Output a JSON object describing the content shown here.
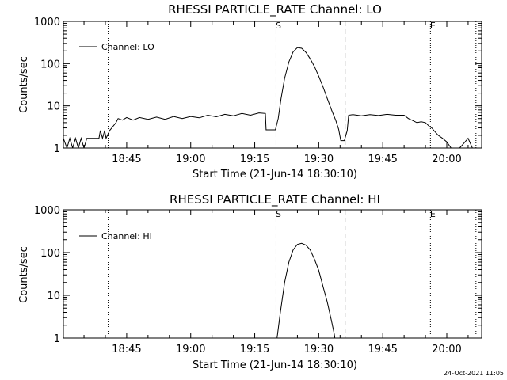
{
  "chart_data": [
    {
      "type": "line",
      "title": "RHESSI PARTICLE_RATE Channel: LO",
      "xlabel": "Start Time (21-Jun-14 18:30:10)",
      "ylabel": "Counts/sec",
      "yscale": "log",
      "ylim": [
        1,
        1000
      ],
      "xlim": [
        "18:30:10",
        "20:08:10"
      ],
      "xticks": [
        "18:45",
        "19:00",
        "19:15",
        "19:30",
        "19:45",
        "20:00"
      ],
      "yticks": [
        "1",
        "10",
        "100",
        "1000"
      ],
      "legend": "top-left",
      "series": [
        {
          "name": "Channel: LO",
          "color": "#000000",
          "points": [
            [
              "18:30:10",
              1.7
            ],
            [
              "18:31:00",
              1.0
            ],
            [
              "18:31:40",
              1.7
            ],
            [
              "18:32:20",
              1.0
            ],
            [
              "18:33:00",
              1.7
            ],
            [
              "18:33:40",
              1.0
            ],
            [
              "18:34:20",
              1.7
            ],
            [
              "18:35:00",
              1.0
            ],
            [
              "18:35:40",
              1.7
            ],
            [
              "18:38:30",
              1.7
            ],
            [
              "18:38:50",
              2.6
            ],
            [
              "18:39:20",
              1.7
            ],
            [
              "18:39:50",
              2.6
            ],
            [
              "18:40:10",
              1.7
            ],
            [
              "18:41:00",
              2.6
            ],
            [
              "18:42:30",
              4.0
            ],
            [
              "18:43:00",
              5.0
            ],
            [
              "18:44:00",
              4.6
            ],
            [
              "18:45:00",
              5.3
            ],
            [
              "18:46:30",
              4.6
            ],
            [
              "18:48:00",
              5.3
            ],
            [
              "18:50:00",
              4.8
            ],
            [
              "18:52:00",
              5.4
            ],
            [
              "18:54:00",
              4.8
            ],
            [
              "18:56:00",
              5.6
            ],
            [
              "18:58:00",
              5.0
            ],
            [
              "19:00:00",
              5.6
            ],
            [
              "19:02:00",
              5.2
            ],
            [
              "19:04:00",
              6.0
            ],
            [
              "19:06:00",
              5.5
            ],
            [
              "19:08:00",
              6.3
            ],
            [
              "19:10:00",
              5.8
            ],
            [
              "19:12:00",
              6.6
            ],
            [
              "19:14:00",
              6.0
            ],
            [
              "19:16:00",
              6.8
            ],
            [
              "19:17:30",
              6.6
            ],
            [
              "19:17:40",
              2.7
            ],
            [
              "19:19:50",
              2.7
            ],
            [
              "19:20:30",
              5.0
            ],
            [
              "19:21:10",
              15
            ],
            [
              "19:22:00",
              45
            ],
            [
              "19:23:00",
              110
            ],
            [
              "19:24:00",
              190
            ],
            [
              "19:25:00",
              240
            ],
            [
              "19:26:00",
              230
            ],
            [
              "19:27:00",
              185
            ],
            [
              "19:28:00",
              130
            ],
            [
              "19:29:00",
              85
            ],
            [
              "19:30:00",
              50
            ],
            [
              "19:31:00",
              28
            ],
            [
              "19:32:00",
              15
            ],
            [
              "19:33:00",
              8
            ],
            [
              "19:34:00",
              4.5
            ],
            [
              "19:34:40",
              2.8
            ],
            [
              "19:35:10",
              1.5
            ],
            [
              "19:36:00",
              1.5
            ],
            [
              "19:36:40",
              2.6
            ],
            [
              "19:37:00",
              6.0
            ],
            [
              "19:38:00",
              6.2
            ],
            [
              "19:40:00",
              5.8
            ],
            [
              "19:42:00",
              6.2
            ],
            [
              "19:44:00",
              5.9
            ],
            [
              "19:46:00",
              6.3
            ],
            [
              "19:48:00",
              6.0
            ],
            [
              "19:50:00",
              6.0
            ],
            [
              "19:51:00",
              5.0
            ],
            [
              "19:52:00",
              4.5
            ],
            [
              "19:53:00",
              4.0
            ],
            [
              "19:54:00",
              4.2
            ],
            [
              "19:55:00",
              4.0
            ],
            [
              "19:56:00",
              3.2
            ],
            [
              "19:56:30",
              3.0
            ],
            [
              "19:57:00",
              2.6
            ],
            [
              "19:58:00",
              2.0
            ],
            [
              "19:59:00",
              1.7
            ],
            [
              "20:00:00",
              1.4
            ],
            [
              "20:01:00",
              1.0
            ],
            [
              "20:03:00",
              1.0
            ],
            [
              "20:04:00",
              1.3
            ],
            [
              "20:05:00",
              1.7
            ],
            [
              "20:06:00",
              1.0
            ]
          ]
        }
      ],
      "annotations": [
        {
          "text": "S",
          "time": "19:20:00",
          "style": "dashed"
        },
        {
          "text": "",
          "time": "19:36:10",
          "style": "dashed"
        },
        {
          "text": "",
          "time": "18:40:40",
          "style": "dotted"
        },
        {
          "text": "E",
          "time": "19:56:10",
          "style": "dotted"
        },
        {
          "text": "",
          "time": "20:06:50",
          "style": "dotted"
        }
      ]
    },
    {
      "type": "line",
      "title": "RHESSI PARTICLE_RATE Channel: HI",
      "xlabel": "Start Time (21-Jun-14 18:30:10)",
      "ylabel": "Counts/sec",
      "yscale": "log",
      "ylim": [
        1,
        1000
      ],
      "xlim": [
        "18:30:10",
        "20:08:10"
      ],
      "xticks": [
        "18:45",
        "19:00",
        "19:15",
        "19:30",
        "19:45",
        "20:00"
      ],
      "yticks": [
        "1",
        "10",
        "100",
        "1000"
      ],
      "legend": "top-left",
      "series": [
        {
          "name": "Channel: HI",
          "color": "#000000",
          "points": [
            [
              "19:20:10",
              0.9
            ],
            [
              "19:21:00",
              4.0
            ],
            [
              "19:22:00",
              20
            ],
            [
              "19:23:00",
              60
            ],
            [
              "19:24:00",
              115
            ],
            [
              "19:25:00",
              155
            ],
            [
              "19:26:00",
              165
            ],
            [
              "19:27:00",
              150
            ],
            [
              "19:28:00",
              115
            ],
            [
              "19:29:00",
              70
            ],
            [
              "19:30:00",
              38
            ],
            [
              "19:31:00",
              16
            ],
            [
              "19:32:00",
              7
            ],
            [
              "19:33:00",
              2.5
            ],
            [
              "19:33:40",
              1.2
            ],
            [
              "19:33:50",
              0.9
            ]
          ]
        }
      ],
      "annotations": [
        {
          "text": "S",
          "time": "19:20:00",
          "style": "dashed"
        },
        {
          "text": "",
          "time": "19:36:10",
          "style": "dashed"
        },
        {
          "text": "",
          "time": "18:40:40",
          "style": "dotted"
        },
        {
          "text": "E",
          "time": "19:56:10",
          "style": "dotted"
        },
        {
          "text": "",
          "time": "20:06:50",
          "style": "dotted"
        }
      ]
    }
  ],
  "footer": {
    "timestamp": "24-Oct-2021 11:05"
  }
}
